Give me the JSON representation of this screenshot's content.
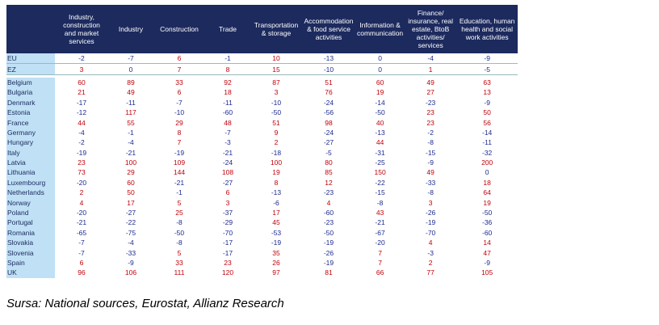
{
  "table": {
    "header": [
      "Industry, construction and market services",
      "Industry",
      "Construction",
      "Trade",
      "Transportation & storage",
      "Accommodation & food service activities",
      "Information & communication",
      "Finance/ insurance, real estate, BtoB activities/ services",
      "Education, human health and social work activities"
    ],
    "rows": [
      {
        "name": "EU",
        "cells": [
          -2,
          -7,
          6,
          -1,
          10,
          -13,
          0,
          -4,
          -9
        ]
      },
      {
        "name": "EZ",
        "cells": [
          3,
          0,
          7,
          8,
          15,
          -10,
          0,
          1,
          -5
        ]
      },
      {
        "name": "Belgium",
        "cells": [
          60,
          89,
          33,
          92,
          87,
          51,
          60,
          49,
          63
        ]
      },
      {
        "name": "Bulgaria",
        "cells": [
          21,
          49,
          6,
          18,
          3,
          76,
          19,
          27,
          13
        ]
      },
      {
        "name": "Denmark",
        "cells": [
          -17,
          -11,
          -7,
          -11,
          -10,
          -24,
          -14,
          -23,
          -9
        ]
      },
      {
        "name": "Estonia",
        "cells": [
          -12,
          117,
          -10,
          -60,
          -50,
          -56,
          -50,
          23,
          50
        ]
      },
      {
        "name": "France",
        "cells": [
          44,
          55,
          29,
          48,
          51,
          98,
          40,
          23,
          56
        ]
      },
      {
        "name": "Germany",
        "cells": [
          -4,
          -1,
          8,
          -7,
          9,
          -24,
          -13,
          -2,
          -14
        ]
      },
      {
        "name": "Hungary",
        "cells": [
          -2,
          -4,
          7,
          -3,
          2,
          -27,
          44,
          -8,
          -11
        ]
      },
      {
        "name": "Italy",
        "cells": [
          -19,
          -21,
          -19,
          -21,
          -18,
          -5,
          -31,
          -15,
          -32
        ]
      },
      {
        "name": "Latvia",
        "cells": [
          23,
          100,
          109,
          -24,
          100,
          80,
          -25,
          -9,
          200
        ]
      },
      {
        "name": "Lithuania",
        "cells": [
          73,
          29,
          144,
          108,
          19,
          85,
          150,
          49,
          0
        ]
      },
      {
        "name": "Luxembourg",
        "cells": [
          -20,
          60,
          -21,
          -27,
          8,
          12,
          -22,
          -33,
          18
        ]
      },
      {
        "name": "Netherlands",
        "cells": [
          2,
          50,
          -1,
          6,
          -13,
          -23,
          -15,
          -8,
          64
        ]
      },
      {
        "name": "Norway",
        "cells": [
          4,
          17,
          5,
          3,
          -6,
          4,
          -8,
          3,
          19
        ]
      },
      {
        "name": "Poland",
        "cells": [
          -20,
          -27,
          25,
          -37,
          17,
          -60,
          43,
          -26,
          -50
        ]
      },
      {
        "name": "Portugal",
        "cells": [
          -21,
          -22,
          -8,
          -29,
          45,
          -23,
          -21,
          -19,
          -36
        ]
      },
      {
        "name": "Romania",
        "cells": [
          -65,
          -75,
          -50,
          -70,
          -53,
          -50,
          -67,
          -70,
          -60
        ]
      },
      {
        "name": "Slovakia",
        "cells": [
          -7,
          -4,
          -8,
          -17,
          -19,
          -19,
          -20,
          4,
          14
        ]
      },
      {
        "name": "Slovenia",
        "cells": [
          -7,
          -33,
          5,
          -17,
          35,
          -26,
          7,
          -3,
          47
        ]
      },
      {
        "name": "Spain",
        "cells": [
          6,
          -9,
          33,
          23,
          26,
          -19,
          7,
          2,
          -9
        ]
      },
      {
        "name": "UK",
        "cells": [
          96,
          106,
          111,
          120,
          97,
          81,
          66,
          77,
          105
        ]
      }
    ],
    "aggregate_rows": 2
  },
  "source": "Sursa: National sources, Eurostat, Allianz Research"
}
